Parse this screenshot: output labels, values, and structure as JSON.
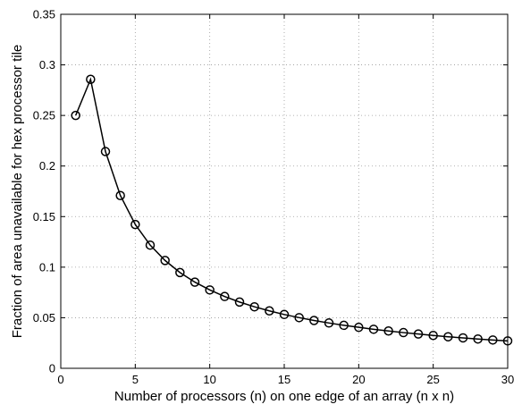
{
  "chart_data": {
    "type": "line",
    "title": "",
    "xlabel": "Number of processors (n) on one edge of an array (n x n)",
    "ylabel": "Fraction of area unavailable for hex processor tile",
    "xlim": [
      0,
      30
    ],
    "ylim": [
      0,
      0.35
    ],
    "xticks": [
      0,
      5,
      10,
      15,
      20,
      25,
      30
    ],
    "xtick_labels": [
      "0",
      "5",
      "10",
      "15",
      "20",
      "25",
      "30"
    ],
    "yticks": [
      0,
      0.05,
      0.1,
      0.15,
      0.2,
      0.25,
      0.3,
      0.35
    ],
    "ytick_labels": [
      "0",
      "0.05",
      "0.1",
      "0.15",
      "0.2",
      "0.25",
      "0.3",
      "0.35"
    ],
    "grid": true,
    "marker": "circle",
    "line_color": "#000000",
    "series": [
      {
        "x": [
          1,
          2,
          3,
          4,
          5,
          6,
          7,
          8,
          9,
          10,
          11,
          12,
          13,
          14,
          15,
          16,
          17,
          18,
          19,
          20,
          21,
          22,
          23,
          24,
          25,
          26,
          27,
          28,
          29,
          30
        ],
        "y": [
          0.25,
          0.2857,
          0.2143,
          0.1708,
          0.1422,
          0.1218,
          0.1066,
          0.0947,
          0.0852,
          0.0775,
          0.071,
          0.0655,
          0.0608,
          0.0568,
          0.0532,
          0.0501,
          0.0473,
          0.0448,
          0.0425,
          0.0405,
          0.0386,
          0.0369,
          0.0353,
          0.0339,
          0.0325,
          0.0312,
          0.0301,
          0.029,
          0.028,
          0.0271
        ]
      }
    ]
  }
}
